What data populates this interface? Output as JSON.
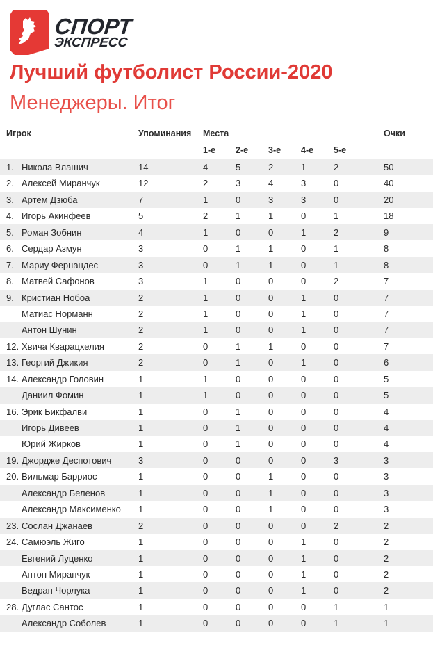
{
  "brand": {
    "line1": "СПОРТ",
    "line2": "ЭКСПРЕСС",
    "color": "#e53935"
  },
  "title": "Лучший футболист России-2020",
  "subtitle": "Менеджеры. Итог",
  "columns": {
    "player": "Игрок",
    "mentions": "Упоминания",
    "places": "Места",
    "p1": "1-е",
    "p2": "2-е",
    "p3": "3-е",
    "p4": "4-е",
    "p5": "5-е",
    "points": "Очки"
  },
  "rows": [
    {
      "rank": "1.",
      "name": "Никола Влашич",
      "mentions": "14",
      "p1": "4",
      "p2": "5",
      "p3": "2",
      "p4": "1",
      "p5": "2",
      "points": "50"
    },
    {
      "rank": "2.",
      "name": "Алексей Миранчук",
      "mentions": "12",
      "p1": "2",
      "p2": "3",
      "p3": "4",
      "p4": "3",
      "p5": "0",
      "points": "40"
    },
    {
      "rank": "3.",
      "name": "Артем Дзюба",
      "mentions": "7",
      "p1": "1",
      "p2": "0",
      "p3": "3",
      "p4": "3",
      "p5": "0",
      "points": "20"
    },
    {
      "rank": "4.",
      "name": "Игорь Акинфеев",
      "mentions": "5",
      "p1": "2",
      "p2": "1",
      "p3": "1",
      "p4": "0",
      "p5": "1",
      "points": "18"
    },
    {
      "rank": "5.",
      "name": "Роман Зобнин",
      "mentions": "4",
      "p1": "1",
      "p2": "0",
      "p3": "0",
      "p4": "1",
      "p5": "2",
      "points": "9"
    },
    {
      "rank": "6.",
      "name": "Сердар Азмун",
      "mentions": "3",
      "p1": "0",
      "p2": "1",
      "p3": "1",
      "p4": "0",
      "p5": "1",
      "points": "8"
    },
    {
      "rank": "7.",
      "name": "Мариу Фернандес",
      "mentions": "3",
      "p1": "0",
      "p2": "1",
      "p3": "1",
      "p4": "0",
      "p5": "1",
      "points": "8"
    },
    {
      "rank": "8.",
      "name": "Матвей Сафонов",
      "mentions": "3",
      "p1": "1",
      "p2": "0",
      "p3": "0",
      "p4": "0",
      "p5": "2",
      "points": "7"
    },
    {
      "rank": "9.",
      "name": "Кристиан Нобоа",
      "mentions": "2",
      "p1": "1",
      "p2": "0",
      "p3": "0",
      "p4": "1",
      "p5": "0",
      "points": "7"
    },
    {
      "rank": "",
      "name": "Матиас Норманн",
      "mentions": "2",
      "p1": "1",
      "p2": "0",
      "p3": "0",
      "p4": "1",
      "p5": "0",
      "points": "7"
    },
    {
      "rank": "",
      "name": "Антон Шунин",
      "mentions": "2",
      "p1": "1",
      "p2": "0",
      "p3": "0",
      "p4": "1",
      "p5": "0",
      "points": "7"
    },
    {
      "rank": "12.",
      "name": "Хвича Кварацхелия",
      "mentions": "2",
      "p1": "0",
      "p2": "1",
      "p3": "1",
      "p4": "0",
      "p5": "0",
      "points": "7"
    },
    {
      "rank": "13.",
      "name": "Георгий Джикия",
      "mentions": "2",
      "p1": "0",
      "p2": "1",
      "p3": "0",
      "p4": "1",
      "p5": "0",
      "points": "6"
    },
    {
      "rank": "14.",
      "name": "Александр Головин",
      "mentions": "1",
      "p1": "1",
      "p2": "0",
      "p3": "0",
      "p4": "0",
      "p5": "0",
      "points": "5"
    },
    {
      "rank": "",
      "name": "Даниил Фомин",
      "mentions": "1",
      "p1": "1",
      "p2": "0",
      "p3": "0",
      "p4": "0",
      "p5": "0",
      "points": "5"
    },
    {
      "rank": "16.",
      "name": "Эрик Бикфалви",
      "mentions": "1",
      "p1": "0",
      "p2": "1",
      "p3": "0",
      "p4": "0",
      "p5": "0",
      "points": "4"
    },
    {
      "rank": "",
      "name": "Игорь Дивеев",
      "mentions": "1",
      "p1": "0",
      "p2": "1",
      "p3": "0",
      "p4": "0",
      "p5": "0",
      "points": "4"
    },
    {
      "rank": "",
      "name": "Юрий Жирков",
      "mentions": "1",
      "p1": "0",
      "p2": "1",
      "p3": "0",
      "p4": "0",
      "p5": "0",
      "points": "4"
    },
    {
      "rank": "19.",
      "name": "Джордже Деспотович",
      "mentions": "3",
      "p1": "0",
      "p2": "0",
      "p3": "0",
      "p4": "0",
      "p5": "3",
      "points": "3"
    },
    {
      "rank": "20.",
      "name": "Вильмар Барриос",
      "mentions": "1",
      "p1": "0",
      "p2": "0",
      "p3": "1",
      "p4": "0",
      "p5": "0",
      "points": "3"
    },
    {
      "rank": "",
      "name": "Александр Беленов",
      "mentions": "1",
      "p1": "0",
      "p2": "0",
      "p3": "1",
      "p4": "0",
      "p5": "0",
      "points": "3"
    },
    {
      "rank": "",
      "name": "Александр Максименко",
      "mentions": "1",
      "p1": "0",
      "p2": "0",
      "p3": "1",
      "p4": "0",
      "p5": "0",
      "points": "3"
    },
    {
      "rank": "23.",
      "name": "Сослан Джанаев",
      "mentions": "2",
      "p1": "0",
      "p2": "0",
      "p3": "0",
      "p4": "0",
      "p5": "2",
      "points": "2"
    },
    {
      "rank": "24.",
      "name": "Самюэль Жиго",
      "mentions": "1",
      "p1": "0",
      "p2": "0",
      "p3": "0",
      "p4": "1",
      "p5": "0",
      "points": "2"
    },
    {
      "rank": "",
      "name": "Евгений Луценко",
      "mentions": "1",
      "p1": "0",
      "p2": "0",
      "p3": "0",
      "p4": "1",
      "p5": "0",
      "points": "2"
    },
    {
      "rank": "",
      "name": "Антон Миранчук",
      "mentions": "1",
      "p1": "0",
      "p2": "0",
      "p3": "0",
      "p4": "1",
      "p5": "0",
      "points": "2"
    },
    {
      "rank": "",
      "name": "Ведран Чорлука",
      "mentions": "1",
      "p1": "0",
      "p2": "0",
      "p3": "0",
      "p4": "1",
      "p5": "0",
      "points": "2"
    },
    {
      "rank": "28.",
      "name": "Дуглас Сантос",
      "mentions": "1",
      "p1": "0",
      "p2": "0",
      "p3": "0",
      "p4": "0",
      "p5": "1",
      "points": "1"
    },
    {
      "rank": "",
      "name": "Александр Соболев",
      "mentions": "1",
      "p1": "0",
      "p2": "0",
      "p3": "0",
      "p4": "0",
      "p5": "1",
      "points": "1"
    }
  ]
}
